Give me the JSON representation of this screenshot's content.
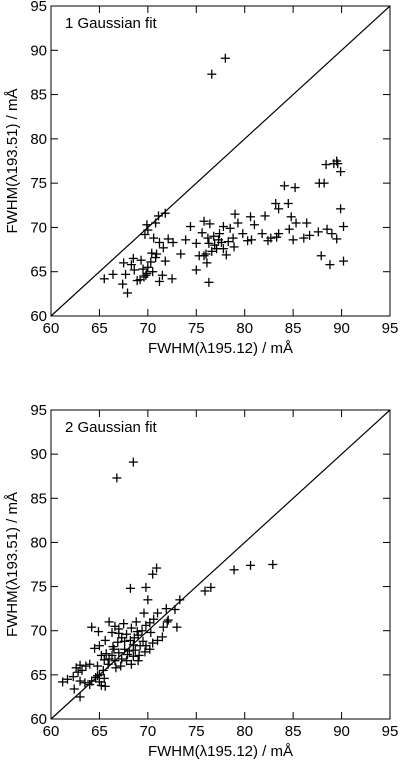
{
  "chart_data": [
    {
      "type": "scatter",
      "title": "",
      "annotation": "1 Gaussian fit",
      "xlabel": "FWHM(λ195.12) / mÅ",
      "ylabel": "FWHM(λ193.51) / mÅ",
      "xlim": [
        60,
        95
      ],
      "ylim": [
        60,
        95
      ],
      "xticks": [
        60,
        65,
        70,
        75,
        80,
        85,
        90,
        95
      ],
      "yticks": [
        60,
        65,
        70,
        75,
        80,
        85,
        90,
        95
      ],
      "marker": "+",
      "reference_line": "y = x",
      "points": [
        [
          76.6,
          87.3
        ],
        [
          78.0,
          89.1
        ],
        [
          89.5,
          77.5
        ],
        [
          89.6,
          77.2
        ],
        [
          89.9,
          76.3
        ],
        [
          88.4,
          77.1
        ],
        [
          89.2,
          77.2
        ],
        [
          88.2,
          75.0
        ],
        [
          87.7,
          75.0
        ],
        [
          84.1,
          74.7
        ],
        [
          85.2,
          74.5
        ],
        [
          83.2,
          72.7
        ],
        [
          83.5,
          72.1
        ],
        [
          84.5,
          72.7
        ],
        [
          84.8,
          71.2
        ],
        [
          84.6,
          69.8
        ],
        [
          85.3,
          70.5
        ],
        [
          86.4,
          70.5
        ],
        [
          86.7,
          69.1
        ],
        [
          87.6,
          69.5
        ],
        [
          88.5,
          69.8
        ],
        [
          89.0,
          69.3
        ],
        [
          89.5,
          68.7
        ],
        [
          90.2,
          70.1
        ],
        [
          89.9,
          72.1
        ],
        [
          87.9,
          66.8
        ],
        [
          88.8,
          65.8
        ],
        [
          90.2,
          66.2
        ],
        [
          86.1,
          68.8
        ],
        [
          85.0,
          68.6
        ],
        [
          83.5,
          69.3
        ],
        [
          83.3,
          68.9
        ],
        [
          82.7,
          68.8
        ],
        [
          82.4,
          68.5
        ],
        [
          81.8,
          69.3
        ],
        [
          80.6,
          71.2
        ],
        [
          81.0,
          70.3
        ],
        [
          82.1,
          71.3
        ],
        [
          80.3,
          68.5
        ],
        [
          80.7,
          68.6
        ],
        [
          79.3,
          70.5
        ],
        [
          79.0,
          71.5
        ],
        [
          79.8,
          69.3
        ],
        [
          78.8,
          68.8
        ],
        [
          78.3,
          68.4
        ],
        [
          78.9,
          67.8
        ],
        [
          78.5,
          69.9
        ],
        [
          77.8,
          70.1
        ],
        [
          77.3,
          68.6
        ],
        [
          77.1,
          67.6
        ],
        [
          76.9,
          68.0
        ],
        [
          76.6,
          67.3
        ],
        [
          76.3,
          68.2
        ],
        [
          77.4,
          69.3
        ],
        [
          77.8,
          67.6
        ],
        [
          78.1,
          66.9
        ],
        [
          76.0,
          67.0
        ],
        [
          75.6,
          69.4
        ],
        [
          75.8,
          70.7
        ],
        [
          76.4,
          70.4
        ],
        [
          75.0,
          68.2
        ],
        [
          76.2,
          68.8
        ],
        [
          76.8,
          69.0
        ],
        [
          77.6,
          68.3
        ],
        [
          75.3,
          66.8
        ],
        [
          75.8,
          66.8
        ],
        [
          76.1,
          66.0
        ],
        [
          75.0,
          65.2
        ],
        [
          76.3,
          63.8
        ],
        [
          74.4,
          70.1
        ],
        [
          73.4,
          67.0
        ],
        [
          73.9,
          68.6
        ],
        [
          72.1,
          68.7
        ],
        [
          72.6,
          68.3
        ],
        [
          71.1,
          71.3
        ],
        [
          71.8,
          71.6
        ],
        [
          70.8,
          70.5
        ],
        [
          69.9,
          70.3
        ],
        [
          69.7,
          69.2
        ],
        [
          70.0,
          69.7
        ],
        [
          70.6,
          68.8
        ],
        [
          71.2,
          68.3
        ],
        [
          71.6,
          67.7
        ],
        [
          70.4,
          67.1
        ],
        [
          70.8,
          66.6
        ],
        [
          70.3,
          66.1
        ],
        [
          70.0,
          65.5
        ],
        [
          69.5,
          65.3
        ],
        [
          69.8,
          64.6
        ],
        [
          69.2,
          64.1
        ],
        [
          69.9,
          64.8
        ],
        [
          70.5,
          65.0
        ],
        [
          71.5,
          64.6
        ],
        [
          72.5,
          64.2
        ],
        [
          71.2,
          63.9
        ],
        [
          69.6,
          64.4
        ],
        [
          68.3,
          65.8
        ],
        [
          68.5,
          66.5
        ],
        [
          67.5,
          66.0
        ],
        [
          67.7,
          64.7
        ],
        [
          66.4,
          64.7
        ],
        [
          65.5,
          64.2
        ],
        [
          67.4,
          63.6
        ],
        [
          67.9,
          62.6
        ],
        [
          68.9,
          64.0
        ],
        [
          68.6,
          65.2
        ],
        [
          69.3,
          66.3
        ],
        [
          70.9,
          67.0
        ],
        [
          71.8,
          66.2
        ]
      ]
    },
    {
      "type": "scatter",
      "title": "",
      "annotation": "2 Gaussian fit",
      "xlabel": "FWHM(λ195.12) / mÅ",
      "ylabel": "FWHM(λ193.51) / mÅ",
      "xlim": [
        60,
        95
      ],
      "ylim": [
        60,
        95
      ],
      "xticks": [
        60,
        65,
        70,
        75,
        80,
        85,
        90,
        95
      ],
      "yticks": [
        60,
        65,
        70,
        75,
        80,
        85,
        90,
        95
      ],
      "marker": "+",
      "reference_line": "y = x",
      "points": [
        [
          66.8,
          87.3
        ],
        [
          68.5,
          89.1
        ],
        [
          82.9,
          77.5
        ],
        [
          80.6,
          77.4
        ],
        [
          78.9,
          76.9
        ],
        [
          76.5,
          74.9
        ],
        [
          75.9,
          74.5
        ],
        [
          73.3,
          73.5
        ],
        [
          72.8,
          72.4
        ],
        [
          72.1,
          71.2
        ],
        [
          73.0,
          70.4
        ],
        [
          71.9,
          72.5
        ],
        [
          70.9,
          77.1
        ],
        [
          70.5,
          76.4
        ],
        [
          69.8,
          74.9
        ],
        [
          70.0,
          73.5
        ],
        [
          68.2,
          74.8
        ],
        [
          71.0,
          72.0
        ],
        [
          69.6,
          72.0
        ],
        [
          70.6,
          71.3
        ],
        [
          69.8,
          70.6
        ],
        [
          70.3,
          69.8
        ],
        [
          69.4,
          70.0
        ],
        [
          68.8,
          71.0
        ],
        [
          69.0,
          69.5
        ],
        [
          68.6,
          69.2
        ],
        [
          68.2,
          68.9
        ],
        [
          67.8,
          69.6
        ],
        [
          67.3,
          69.2
        ],
        [
          67.6,
          68.8
        ],
        [
          66.9,
          68.7
        ],
        [
          68.5,
          68.4
        ],
        [
          69.2,
          68.3
        ],
        [
          69.8,
          68.3
        ],
        [
          70.5,
          68.6
        ],
        [
          71.0,
          68.9
        ],
        [
          71.5,
          69.3
        ],
        [
          68.7,
          67.8
        ],
        [
          68.1,
          67.7
        ],
        [
          67.6,
          67.9
        ],
        [
          67.0,
          67.5
        ],
        [
          66.5,
          67.9
        ],
        [
          66.3,
          67.2
        ],
        [
          66.0,
          66.8
        ],
        [
          66.6,
          66.6
        ],
        [
          67.3,
          66.8
        ],
        [
          67.8,
          66.6
        ],
        [
          68.5,
          67.1
        ],
        [
          69.1,
          67.2
        ],
        [
          69.7,
          67.6
        ],
        [
          70.2,
          67.9
        ],
        [
          69.0,
          66.6
        ],
        [
          68.3,
          66.2
        ],
        [
          67.2,
          66.0
        ],
        [
          66.7,
          65.8
        ],
        [
          65.9,
          66.2
        ],
        [
          65.5,
          66.7
        ],
        [
          65.2,
          67.2
        ],
        [
          65.0,
          68.3
        ],
        [
          65.6,
          68.9
        ],
        [
          64.5,
          68.0
        ],
        [
          64.9,
          69.9
        ],
        [
          64.2,
          70.4
        ],
        [
          66.0,
          71.0
        ],
        [
          66.6,
          70.5
        ],
        [
          67.0,
          70.2
        ],
        [
          66.3,
          69.8
        ],
        [
          67.5,
          70.8
        ],
        [
          65.4,
          65.5
        ],
        [
          65.0,
          65.0
        ],
        [
          64.6,
          64.7
        ],
        [
          64.2,
          64.3
        ],
        [
          64.8,
          66.0
        ],
        [
          64.0,
          66.2
        ],
        [
          63.6,
          66.0
        ],
        [
          63.2,
          65.5
        ],
        [
          63.0,
          66.1
        ],
        [
          62.6,
          65.8
        ],
        [
          62.8,
          65.3
        ],
        [
          62.3,
          64.8
        ],
        [
          61.7,
          64.5
        ],
        [
          61.2,
          64.2
        ],
        [
          63.0,
          64.3
        ],
        [
          63.5,
          64.1
        ],
        [
          64.0,
          63.9
        ],
        [
          65.0,
          64.2
        ],
        [
          65.5,
          64.6
        ],
        [
          65.6,
          63.7
        ],
        [
          65.2,
          63.8
        ],
        [
          64.8,
          64.9
        ],
        [
          63.0,
          62.5
        ],
        [
          62.4,
          63.4
        ],
        [
          68.9,
          69.9
        ],
        [
          70.2,
          70.9
        ],
        [
          71.6,
          70.4
        ],
        [
          72.0,
          71.0
        ],
        [
          69.5,
          68.8
        ],
        [
          68.3,
          70.3
        ],
        [
          67.0,
          69.7
        ],
        [
          66.4,
          68.2
        ],
        [
          65.7,
          67.4
        ],
        [
          67.9,
          67.3
        ]
      ]
    }
  ]
}
